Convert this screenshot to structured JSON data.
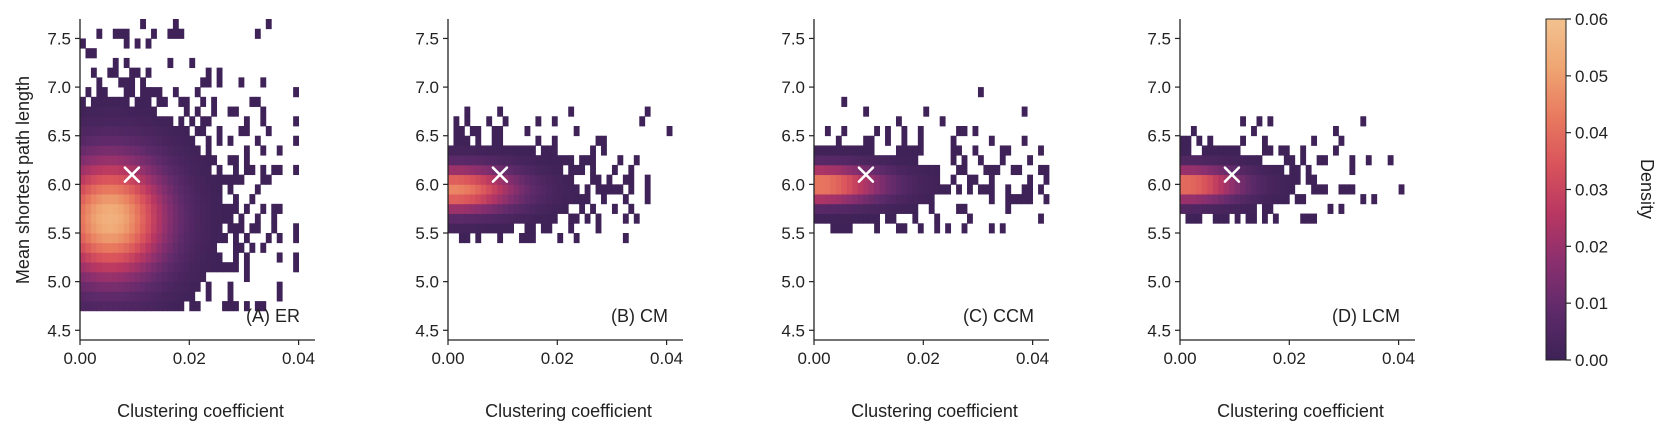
{
  "chart_data": {
    "type": "heatmap",
    "shared": {
      "xlabel": "Clustering coefficient",
      "ylabel": "Mean shortest path length",
      "xlim": [
        0.0,
        0.043
      ],
      "ylim": [
        4.4,
        7.7
      ],
      "xticks": [
        "0.00",
        "0.02",
        "0.04"
      ],
      "yticks": [
        "4.5",
        "5.0",
        "5.5",
        "6.0",
        "6.5",
        "7.0",
        "7.5"
      ],
      "bin_width_x": 0.001,
      "bin_height_y": 0.1,
      "grid": false
    },
    "colorbar": {
      "label": "Density",
      "range": [
        0.0,
        0.06
      ],
      "ticks": [
        "0.00",
        "0.01",
        "0.02",
        "0.03",
        "0.04",
        "0.05",
        "0.06"
      ],
      "colors": [
        "#3d2256",
        "#5e2a6a",
        "#8a2f6f",
        "#b83762",
        "#d9535b",
        "#e87a5f",
        "#efa572",
        "#f2c28f"
      ]
    },
    "reference_marker": {
      "x": 0.0095,
      "y": 6.1,
      "symbol": "x",
      "color": "#ffffff"
    },
    "panels": [
      {
        "label": "(A) ER",
        "peak": {
          "x": 0.0055,
          "y": 5.65,
          "value": 0.055
        },
        "spread": {
          "x": 0.007,
          "y": 0.42
        },
        "x_support": [
          0.0,
          0.041
        ],
        "y_support": [
          4.75,
          7.6
        ]
      },
      {
        "label": "(B) CM",
        "peak": {
          "x": 0.001,
          "y": 5.95,
          "value": 0.045
        },
        "spread": {
          "x": 0.008,
          "y": 0.16
        },
        "x_support": [
          0.0,
          0.043
        ],
        "y_support": [
          5.4,
          6.95
        ]
      },
      {
        "label": "(C) CCM",
        "peak": {
          "x": 0.0008,
          "y": 6.0,
          "value": 0.045
        },
        "spread": {
          "x": 0.008,
          "y": 0.13
        },
        "x_support": [
          0.0,
          0.043
        ],
        "y_support": [
          5.5,
          7.15
        ]
      },
      {
        "label": "(D) LCM",
        "peak": {
          "x": 0.0008,
          "y": 6.0,
          "value": 0.043
        },
        "spread": {
          "x": 0.007,
          "y": 0.12
        },
        "x_support": [
          0.0,
          0.041
        ],
        "y_support": [
          5.65,
          6.65
        ]
      }
    ]
  }
}
